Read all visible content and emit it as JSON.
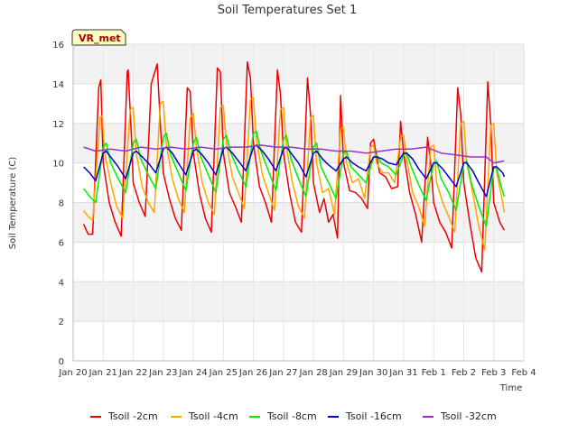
{
  "chart_data": {
    "type": "line",
    "title": "Soil Temperatures Set 1",
    "xlabel": "Time",
    "ylabel": "Soil Temperature (C)",
    "badge": "VR_met",
    "xlim": [
      0,
      15
    ],
    "ylim": [
      0,
      16
    ],
    "grid": true,
    "legend_position": "bottom",
    "x_tick_labels": [
      "Jan 20",
      "Jan 21",
      "Jan 22",
      "Jan 23",
      "Jan 24",
      "Jan 25",
      "Jan 26",
      "Jan 27",
      "Jan 28",
      "Jan 29",
      "Jan 30",
      "Jan 31",
      "Feb 1",
      "Feb 2",
      "Feb 3",
      "Feb 4"
    ],
    "y_tick_labels": [
      "0",
      "2",
      "4",
      "6",
      "8",
      "10",
      "12",
      "14",
      "16"
    ],
    "x_unit": "days since Jan 20",
    "series": [
      {
        "name": "Tsoil -2cm",
        "color": "#ee0000",
        "x": [
          0.35,
          0.5,
          0.65,
          0.85,
          0.92,
          1.0,
          1.2,
          1.4,
          1.6,
          1.8,
          1.83,
          1.95,
          2.0,
          2.2,
          2.4,
          2.6,
          2.8,
          2.9,
          3.0,
          3.2,
          3.4,
          3.6,
          3.8,
          3.9,
          4.0,
          4.2,
          4.4,
          4.6,
          4.8,
          4.9,
          5.0,
          5.2,
          5.4,
          5.6,
          5.8,
          5.9,
          6.0,
          6.2,
          6.4,
          6.6,
          6.8,
          6.9,
          7.0,
          7.2,
          7.4,
          7.6,
          7.8,
          7.9,
          8.0,
          8.2,
          8.35,
          8.5,
          8.65,
          8.8,
          8.9,
          9.0,
          9.2,
          9.4,
          9.6,
          9.8,
          9.9,
          10.0,
          10.2,
          10.4,
          10.6,
          10.8,
          10.9,
          11.0,
          11.2,
          11.4,
          11.6,
          11.8,
          11.9,
          12.0,
          12.2,
          12.4,
          12.6,
          12.8,
          12.9,
          13.0,
          13.2,
          13.4,
          13.6,
          13.8,
          13.9,
          14.0,
          14.2,
          14.35
        ],
        "y": [
          6.9,
          6.4,
          6.4,
          13.8,
          14.2,
          10.0,
          8.0,
          7.0,
          6.3,
          14.6,
          14.7,
          11.0,
          9.0,
          8.0,
          7.3,
          14.0,
          15.0,
          12.0,
          9.5,
          8.2,
          7.2,
          6.6,
          13.8,
          13.6,
          10.5,
          8.5,
          7.2,
          6.5,
          14.8,
          14.6,
          10.5,
          8.5,
          7.8,
          7.0,
          15.1,
          14.3,
          11.0,
          8.8,
          8.0,
          7.0,
          14.7,
          13.5,
          10.5,
          8.5,
          7.0,
          6.5,
          14.3,
          12.5,
          9.0,
          7.5,
          8.2,
          7.0,
          7.4,
          6.2,
          13.4,
          10.0,
          8.6,
          8.5,
          8.2,
          7.7,
          11.0,
          11.2,
          9.5,
          9.3,
          8.7,
          8.8,
          12.1,
          10.5,
          8.5,
          7.4,
          6.0,
          11.3,
          10.0,
          8.0,
          7.0,
          6.5,
          5.7,
          13.8,
          12.5,
          9.0,
          7.0,
          5.2,
          4.5,
          14.1,
          12.0,
          8.0,
          7.0,
          6.6
        ]
      },
      {
        "name": "Tsoil -4cm",
        "color": "#ffa500",
        "x": [
          0.35,
          0.5,
          0.65,
          0.9,
          0.97,
          1.05,
          1.25,
          1.45,
          1.65,
          1.9,
          2.0,
          2.1,
          2.3,
          2.5,
          2.7,
          2.9,
          3.0,
          3.1,
          3.3,
          3.5,
          3.7,
          3.9,
          4.0,
          4.1,
          4.3,
          4.5,
          4.7,
          4.9,
          5.0,
          5.1,
          5.3,
          5.5,
          5.7,
          5.9,
          6.0,
          6.1,
          6.3,
          6.5,
          6.7,
          6.9,
          7.0,
          7.1,
          7.3,
          7.5,
          7.7,
          7.9,
          8.0,
          8.1,
          8.3,
          8.5,
          8.7,
          8.9,
          9.0,
          9.1,
          9.3,
          9.5,
          9.7,
          9.9,
          10.0,
          10.1,
          10.3,
          10.5,
          10.7,
          10.9,
          11.0,
          11.1,
          11.3,
          11.5,
          11.7,
          11.9,
          12.0,
          12.1,
          12.3,
          12.5,
          12.7,
          12.9,
          13.0,
          13.1,
          13.3,
          13.5,
          13.7,
          13.9,
          14.0,
          14.1,
          14.3,
          14.35
        ],
        "y": [
          7.6,
          7.3,
          7.1,
          12.3,
          12.4,
          10.5,
          9.0,
          7.8,
          7.2,
          12.7,
          12.8,
          10.5,
          8.8,
          8.0,
          7.5,
          13.0,
          13.1,
          11.0,
          9.2,
          8.2,
          7.5,
          12.3,
          12.5,
          10.8,
          9.0,
          8.0,
          7.4,
          12.8,
          12.9,
          11.0,
          9.3,
          8.5,
          7.7,
          13.2,
          13.3,
          11.2,
          9.4,
          8.5,
          7.6,
          12.7,
          12.8,
          10.8,
          9.0,
          7.8,
          7.2,
          12.3,
          12.4,
          10.0,
          8.5,
          8.7,
          7.4,
          11.7,
          11.8,
          10.0,
          9.0,
          9.2,
          8.2,
          10.8,
          10.9,
          10.0,
          9.5,
          9.5,
          9.0,
          11.3,
          11.4,
          10.2,
          8.5,
          7.8,
          6.8,
          10.8,
          10.9,
          9.0,
          8.0,
          7.3,
          6.5,
          12.0,
          12.1,
          10.0,
          8.5,
          6.8,
          5.6,
          11.9,
          12.0,
          9.5,
          8.0,
          7.5
        ]
      },
      {
        "name": "Tsoil -8cm",
        "color": "#00ee00",
        "x": [
          0.35,
          0.55,
          0.75,
          1.0,
          1.1,
          1.25,
          1.5,
          1.75,
          2.0,
          2.1,
          2.25,
          2.5,
          2.75,
          3.0,
          3.1,
          3.25,
          3.5,
          3.75,
          4.0,
          4.1,
          4.25,
          4.5,
          4.75,
          5.0,
          5.1,
          5.25,
          5.5,
          5.75,
          6.0,
          6.1,
          6.25,
          6.5,
          6.75,
          7.0,
          7.1,
          7.25,
          7.5,
          7.75,
          8.0,
          8.1,
          8.25,
          8.5,
          8.75,
          9.0,
          9.1,
          9.25,
          9.5,
          9.75,
          10.0,
          10.1,
          10.25,
          10.5,
          10.75,
          11.0,
          11.1,
          11.25,
          11.5,
          11.75,
          12.0,
          12.1,
          12.25,
          12.5,
          12.75,
          13.0,
          13.1,
          13.25,
          13.5,
          13.75,
          14.0,
          14.1,
          14.25,
          14.35
        ],
        "y": [
          8.7,
          8.3,
          8.0,
          10.8,
          11.0,
          10.0,
          9.2,
          8.5,
          11.0,
          11.2,
          10.2,
          9.4,
          8.7,
          11.3,
          11.5,
          10.4,
          9.5,
          8.6,
          11.0,
          11.3,
          10.3,
          9.4,
          8.5,
          11.2,
          11.4,
          10.5,
          9.6,
          8.8,
          11.5,
          11.6,
          10.6,
          9.6,
          8.6,
          11.2,
          11.4,
          10.2,
          9.2,
          8.3,
          10.8,
          11.0,
          9.8,
          9.0,
          8.2,
          10.5,
          10.6,
          9.8,
          9.4,
          9.0,
          10.3,
          10.4,
          10.0,
          9.8,
          9.4,
          10.4,
          10.5,
          9.8,
          8.9,
          8.1,
          10.0,
          10.1,
          9.2,
          8.5,
          7.6,
          10.0,
          10.1,
          9.0,
          7.8,
          6.8,
          9.8,
          9.7,
          8.8,
          8.3
        ]
      },
      {
        "name": "Tsoil -16cm",
        "color": "#0000cc",
        "x": [
          0.35,
          0.55,
          0.75,
          1.0,
          1.1,
          1.3,
          1.5,
          1.75,
          2.0,
          2.1,
          2.3,
          2.5,
          2.75,
          3.0,
          3.1,
          3.3,
          3.5,
          3.75,
          4.0,
          4.1,
          4.3,
          4.5,
          4.75,
          5.0,
          5.1,
          5.3,
          5.5,
          5.75,
          6.0,
          6.1,
          6.3,
          6.5,
          6.75,
          7.0,
          7.1,
          7.3,
          7.5,
          7.75,
          8.0,
          8.1,
          8.3,
          8.5,
          8.75,
          9.0,
          9.1,
          9.3,
          9.5,
          9.75,
          10.0,
          10.1,
          10.3,
          10.5,
          10.75,
          11.0,
          11.1,
          11.3,
          11.5,
          11.75,
          12.0,
          12.1,
          12.3,
          12.5,
          12.75,
          13.0,
          13.1,
          13.3,
          13.5,
          13.75,
          14.0,
          14.1,
          14.3,
          14.35
        ],
        "y": [
          9.8,
          9.5,
          9.1,
          10.5,
          10.6,
          10.2,
          9.8,
          9.2,
          10.5,
          10.6,
          10.3,
          10.0,
          9.5,
          10.7,
          10.8,
          10.5,
          10.0,
          9.4,
          10.6,
          10.7,
          10.4,
          10.0,
          9.4,
          10.7,
          10.8,
          10.5,
          10.1,
          9.6,
          10.8,
          10.9,
          10.6,
          10.2,
          9.6,
          10.7,
          10.8,
          10.4,
          10.0,
          9.3,
          10.5,
          10.6,
          10.2,
          9.9,
          9.6,
          10.2,
          10.3,
          10.0,
          9.8,
          9.6,
          10.3,
          10.3,
          10.2,
          10.0,
          9.9,
          10.5,
          10.5,
          10.2,
          9.7,
          9.2,
          10.0,
          10.0,
          9.7,
          9.3,
          8.8,
          10.0,
          10.0,
          9.6,
          9.0,
          8.3,
          9.8,
          9.8,
          9.5,
          9.3
        ]
      },
      {
        "name": "Tsoil -32cm",
        "color": "#9932cc",
        "x": [
          0.35,
          0.75,
          1.25,
          1.75,
          2.25,
          2.75,
          3.25,
          3.75,
          4.25,
          4.75,
          5.25,
          5.75,
          6.25,
          6.75,
          7.25,
          7.75,
          8.25,
          8.75,
          9.25,
          9.75,
          10.25,
          10.75,
          11.25,
          11.75,
          12.25,
          12.75,
          13.25,
          13.75,
          14.0,
          14.35
        ],
        "y": [
          10.8,
          10.6,
          10.7,
          10.6,
          10.8,
          10.7,
          10.8,
          10.7,
          10.8,
          10.7,
          10.8,
          10.8,
          10.9,
          10.8,
          10.8,
          10.7,
          10.7,
          10.6,
          10.6,
          10.5,
          10.6,
          10.7,
          10.7,
          10.8,
          10.5,
          10.4,
          10.3,
          10.3,
          10.0,
          10.1
        ]
      }
    ]
  }
}
